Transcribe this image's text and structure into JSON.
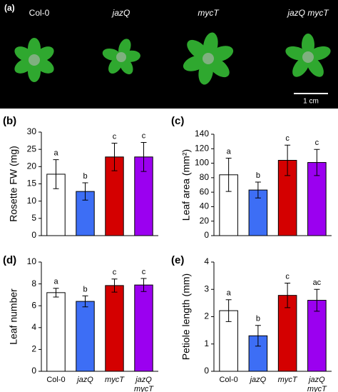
{
  "photo_panel": {
    "label": "(a)",
    "genotypes": [
      "Col-0",
      "jazQ",
      "mycT",
      "jazQ mycT"
    ],
    "scale_bar": "1 cm"
  },
  "chart_data": [
    {
      "type": "bar",
      "panel": "(b)",
      "ylabel": "Rosette FW (mg)",
      "values": [
        17.8,
        12.8,
        22.8,
        22.8
      ],
      "errors": [
        4.2,
        2.5,
        4.0,
        4.2
      ],
      "letters": [
        "a",
        "b",
        "c",
        "c"
      ],
      "colors": [
        "#ffffff",
        "#3d6ef5",
        "#d40000",
        "#9b00f0"
      ],
      "ylim": [
        0,
        30
      ],
      "yticks": [
        0,
        5,
        10,
        15,
        20,
        25,
        30
      ]
    },
    {
      "type": "bar",
      "panel": "(c)",
      "ylabel": "Leaf area (mm²)",
      "values": [
        84,
        63,
        104,
        101
      ],
      "errors": [
        23,
        11,
        21,
        18
      ],
      "letters": [
        "a",
        "b",
        "c",
        "c"
      ],
      "colors": [
        "#ffffff",
        "#3d6ef5",
        "#d40000",
        "#9b00f0"
      ],
      "ylim": [
        0,
        140
      ],
      "yticks": [
        0,
        20,
        40,
        60,
        80,
        100,
        120,
        140
      ]
    },
    {
      "type": "bar",
      "panel": "(d)",
      "ylabel": "Leaf number",
      "categories": [
        "Col-0",
        "jazQ",
        "mycT",
        "jazQ mycT"
      ],
      "values": [
        7.2,
        6.4,
        7.85,
        7.9
      ],
      "errors": [
        0.4,
        0.5,
        0.6,
        0.6
      ],
      "letters": [
        "a",
        "b",
        "c",
        "c"
      ],
      "colors": [
        "#ffffff",
        "#3d6ef5",
        "#d40000",
        "#9b00f0"
      ],
      "ylim": [
        0,
        10
      ],
      "yticks": [
        0,
        2,
        4,
        6,
        8,
        10
      ]
    },
    {
      "type": "bar",
      "panel": "(e)",
      "ylabel": "Petiole length (mm)",
      "categories": [
        "Col-0",
        "jazQ",
        "mycT",
        "jazQ mycT"
      ],
      "values": [
        2.22,
        1.3,
        2.78,
        2.6
      ],
      "errors": [
        0.4,
        0.38,
        0.45,
        0.4
      ],
      "letters": [
        "a",
        "b",
        "c",
        "ac"
      ],
      "colors": [
        "#ffffff",
        "#3d6ef5",
        "#d40000",
        "#9b00f0"
      ],
      "ylim": [
        0,
        4
      ],
      "yticks": [
        0,
        1,
        2,
        3,
        4
      ]
    }
  ]
}
